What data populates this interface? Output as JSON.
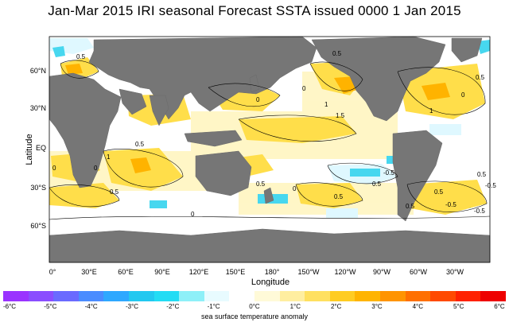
{
  "title": "Jan-Mar 2015 IRI seasonal Forecast SSTA issued 0000 1 Jan 2015",
  "axes": {
    "xlabel": "Longitude",
    "ylabel": "Latitude",
    "lon_ticks": [
      "0°",
      "30°E",
      "60°E",
      "90°E",
      "120°E",
      "150°E",
      "180°",
      "150°W",
      "120°W",
      "90°W",
      "60°W",
      "30°W"
    ],
    "lat_ticks": [
      "60°N",
      "30°N",
      "EQ",
      "30°S",
      "60°S"
    ]
  },
  "contour_labels": [
    "0.5",
    "0",
    "0.5",
    "0",
    "1",
    "1.5",
    "0",
    "0.5",
    "1",
    "0.5",
    "0",
    "0",
    "0.5",
    "1",
    "0",
    "0.5",
    "0.5",
    "-0.5",
    "0",
    "-0.5",
    "0.5",
    "0.5",
    "-0.5",
    "0.5",
    "-0.5",
    "0.5"
  ],
  "colorbar": {
    "label": "sea surface temperature anomaly",
    "ticks": [
      "-6°C",
      "-5°C",
      "-4°C",
      "-3°C",
      "-2°C",
      "-1°C",
      "0°C",
      "1°C",
      "2°C",
      "3°C",
      "4°C",
      "5°C",
      "6°C"
    ],
    "colors": [
      "#9a33ff",
      "#8a4dff",
      "#6a6aff",
      "#4a8cff",
      "#2ea8ff",
      "#22c8f0",
      "#22dcf4",
      "#8ef0f8",
      "#e8fbff",
      "#ffffff",
      "#fffad8",
      "#ffeea0",
      "#ffe060",
      "#ffcc22",
      "#ffb400",
      "#ff9400",
      "#ff7000",
      "#ff4a00",
      "#ff2200",
      "#ee0000"
    ]
  },
  "colors": {
    "land": "#767676",
    "ocean_neutral": "#ffffff",
    "warm_light": "#fff6c4",
    "warm_mid": "#ffde4a",
    "warm_strong": "#ffb300",
    "cool_light": "#dff8ff",
    "cool_mid": "#47d7ef"
  }
}
